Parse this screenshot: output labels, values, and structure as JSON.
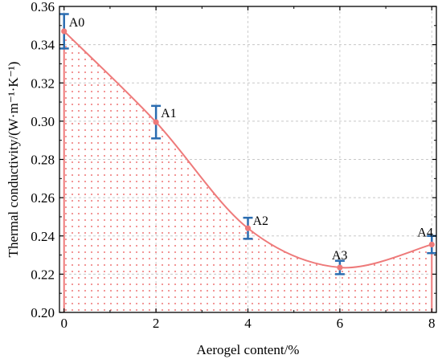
{
  "chart_data": {
    "type": "line",
    "xlabel": "Aerogel content/%",
    "ylabel": "Thermal conductivity/(W·m⁻¹·K⁻¹)",
    "xlim": [
      -0.1,
      8.1
    ],
    "ylim": [
      0.2,
      0.36
    ],
    "xticks": [
      "0",
      "2",
      "4",
      "6",
      "8"
    ],
    "yticks": [
      "0.20",
      "0.22",
      "0.24",
      "0.26",
      "0.28",
      "0.30",
      "0.32",
      "0.34",
      "0.36"
    ],
    "grid": true,
    "fill_under_curve": true,
    "series": [
      {
        "x": [
          0,
          2,
          4,
          6,
          8
        ],
        "y": [
          0.347,
          0.2995,
          0.244,
          0.2235,
          0.2355
        ],
        "error": [
          0.009,
          0.0085,
          0.0055,
          0.0035,
          0.0045
        ],
        "point_labels": [
          "A0",
          "A1",
          "A2",
          "A3",
          "A4"
        ]
      }
    ],
    "colors": {
      "line": "#ee7a7a",
      "fill_dots": "#ee7a7a",
      "error_bars": "#2a6cb0",
      "grid": "#c8c8c8"
    }
  }
}
